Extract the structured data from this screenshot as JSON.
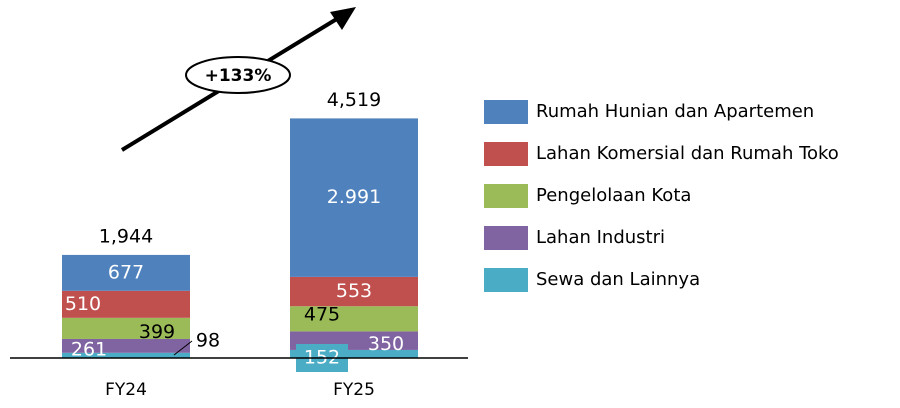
{
  "chart_data": {
    "type": "stacked_bar",
    "categories": [
      "FY24",
      "FY25"
    ],
    "series": [
      {
        "name": "Sewa dan Lainnya",
        "color": "#4bacc6",
        "values": [
          98,
          152
        ]
      },
      {
        "name": "Lahan Industri",
        "color": "#8064a2",
        "values": [
          261,
          350
        ]
      },
      {
        "name": "Pengelolaan Kota",
        "color": "#9bbb59",
        "values": [
          399,
          475
        ]
      },
      {
        "name": "Lahan Komersial dan Rumah Toko",
        "color": "#c0504d",
        "values": [
          510,
          553
        ]
      },
      {
        "name": "Rumah Hunian dan Apartemen",
        "color": "#4f81bd",
        "values": [
          677,
          2991
        ],
        "value_labels": [
          "677",
          "2.991"
        ]
      }
    ],
    "totals": [
      1944,
      4519
    ],
    "total_labels": [
      "1,944",
      "4,519"
    ],
    "annotation": "+133%",
    "ylim": [
      0,
      5000
    ]
  }
}
